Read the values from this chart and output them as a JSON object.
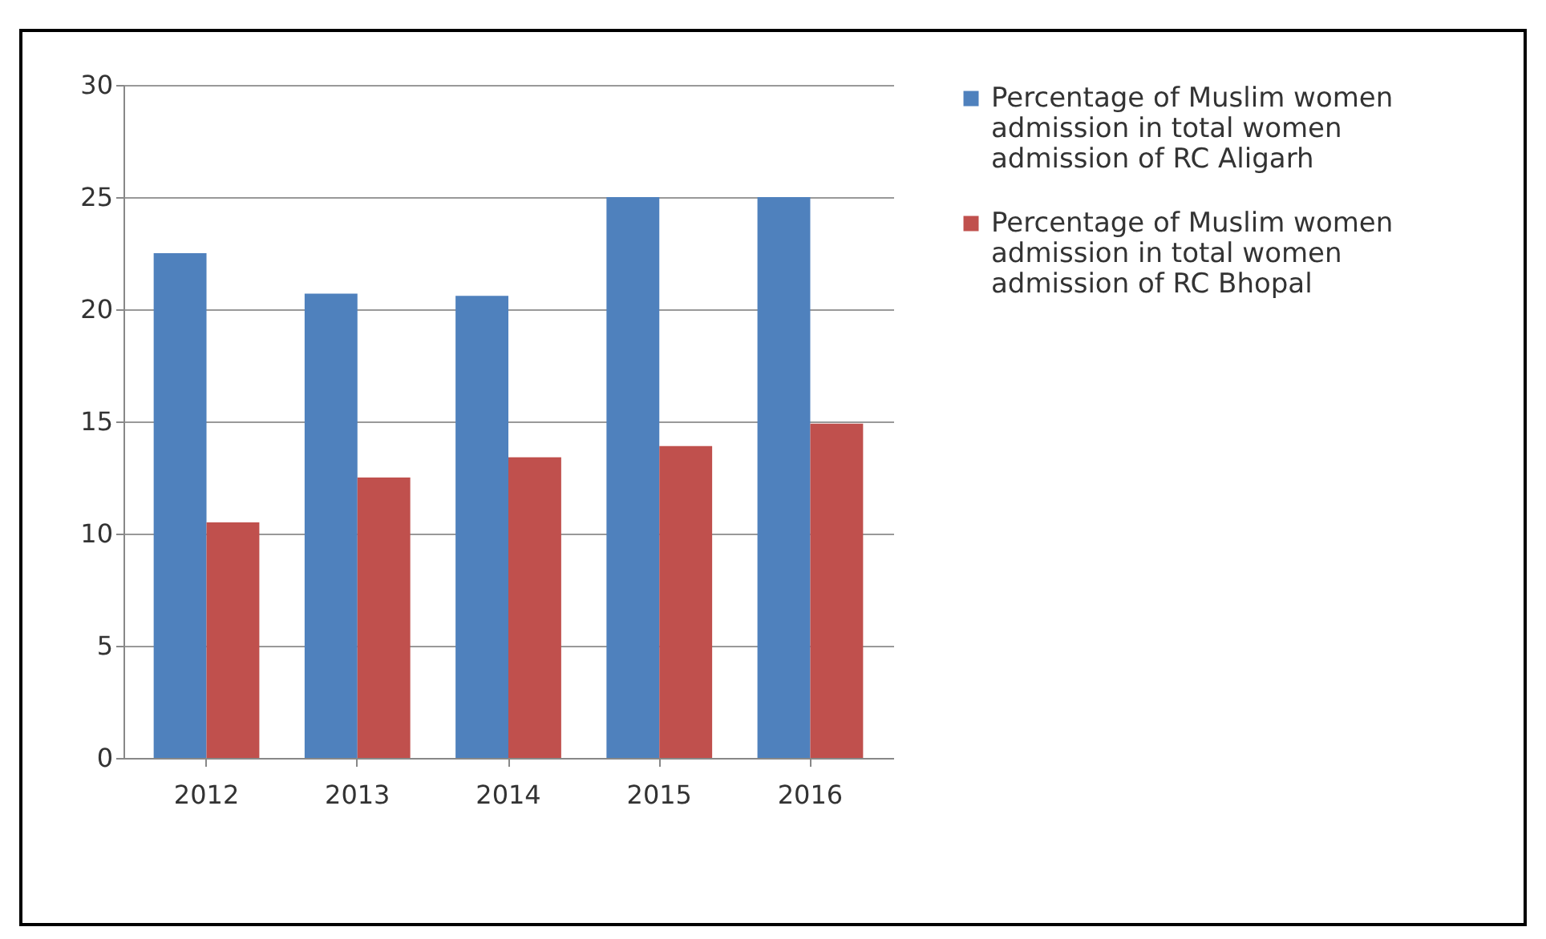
{
  "chart_data": {
    "type": "bar",
    "categories": [
      "2012",
      "2013",
      "2014",
      "2015",
      "2016"
    ],
    "series": [
      {
        "name": "Percentage of Muslim women admission in total women admission of RC Aligarh",
        "color": "#4f81bd",
        "values": [
          22.5,
          20.7,
          20.6,
          25,
          25
        ]
      },
      {
        "name": "Percentage of Muslim women admission in total women admission of RC Bhopal",
        "color": "#c0504d",
        "values": [
          10.5,
          12.5,
          13.4,
          13.9,
          14.9
        ]
      }
    ],
    "ylim": [
      0,
      30
    ],
    "yticks": [
      0,
      5,
      10,
      15,
      20,
      25,
      30
    ],
    "grid": "y",
    "legend": "right"
  }
}
